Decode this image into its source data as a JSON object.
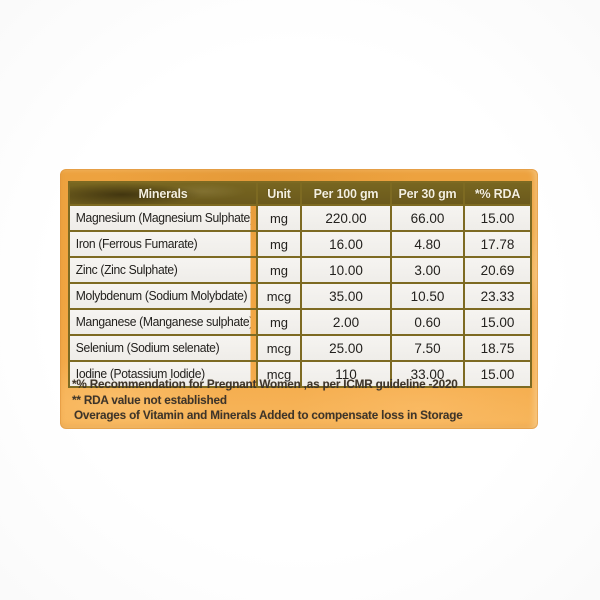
{
  "label": {
    "accent_orange": "#f0a542",
    "header_olive": "#6e5c20",
    "row_offwhite": "#f3f1ee",
    "border_olive": "#7d6a22",
    "table": {
      "headers": {
        "mineral": "Minerals",
        "unit": "Unit",
        "per100": "Per 100 gm",
        "per30": "Per 30 gm",
        "rda": "*% RDA"
      },
      "rows": [
        {
          "mineral": "Magnesium (Magnesium Sulphate)",
          "unit": "mg",
          "per100": "220.00",
          "per30": "66.00",
          "rda": "15.00"
        },
        {
          "mineral": "Iron (Ferrous Fumarate)",
          "unit": "mg",
          "per100": "16.00",
          "per30": "4.80",
          "rda": "17.78"
        },
        {
          "mineral": "Zinc (Zinc Sulphate)",
          "unit": "mg",
          "per100": "10.00",
          "per30": "3.00",
          "rda": "20.69"
        },
        {
          "mineral": "Molybdenum (Sodium Molybdate)",
          "unit": "mcg",
          "per100": "35.00",
          "per30": "10.50",
          "rda": "23.33"
        },
        {
          "mineral": "Manganese (Manganese sulphate)",
          "unit": "mg",
          "per100": "2.00",
          "per30": "0.60",
          "rda": "15.00"
        },
        {
          "mineral": "Selenium (Sodium selenate)",
          "unit": "mcg",
          "per100": "25.00",
          "per30": "7.50",
          "rda": "18.75"
        },
        {
          "mineral": "Iodine (Potassium Iodide)",
          "unit": "mcg",
          "per100": "110",
          "per30": "33.00",
          "rda": "15.00"
        }
      ]
    },
    "footnotes": [
      "*% Recommendation for Pregnant Women ,as per ICMR  guideline -2020",
      "** RDA value not established",
      "Overages of Vitamin and Minerals Added to compensate loss in Storage"
    ]
  }
}
